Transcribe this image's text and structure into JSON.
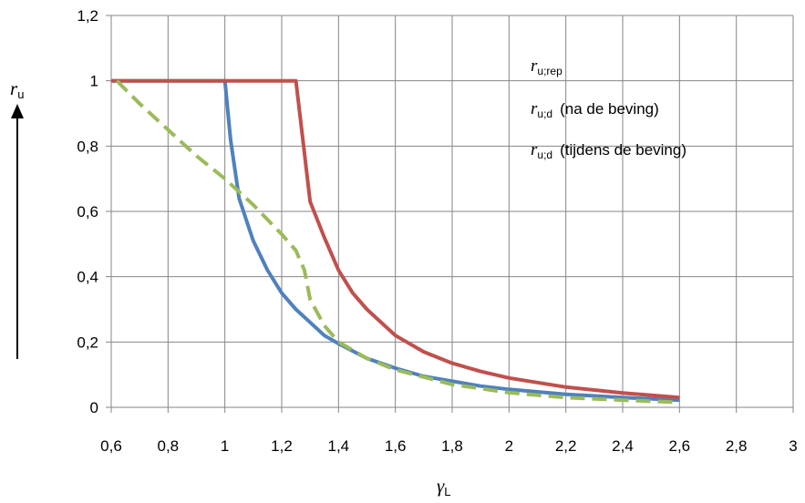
{
  "chart_data": {
    "type": "line",
    "xlabel": "γ",
    "xlabel_sub": "L",
    "ylabel": "r",
    "ylabel_sub": "u",
    "xlim": [
      0.6,
      3.0
    ],
    "ylim": [
      0,
      1.2
    ],
    "x_ticks": [
      "0,6",
      "0,8",
      "1",
      "1,2",
      "1,4",
      "1,6",
      "1,8",
      "2",
      "2,2",
      "2,4",
      "2,6",
      "2,8",
      "3"
    ],
    "y_ticks": [
      "0",
      "0,2",
      "0,4",
      "0,6",
      "0,8",
      "1",
      "1,2"
    ],
    "grid": true,
    "legend_position": "top-right",
    "series": [
      {
        "symbol": "r",
        "sub": "u;rep",
        "suffix": "",
        "color": "#4f81bd",
        "dash": "solid",
        "x": [
          0.6,
          1.0,
          1.02,
          1.05,
          1.1,
          1.15,
          1.2,
          1.25,
          1.3,
          1.35,
          1.4,
          1.5,
          1.6,
          1.7,
          1.8,
          1.9,
          2.0,
          2.2,
          2.4,
          2.6
        ],
        "y": [
          1.0,
          1.0,
          0.82,
          0.64,
          0.51,
          0.42,
          0.35,
          0.3,
          0.26,
          0.22,
          0.195,
          0.15,
          0.12,
          0.095,
          0.08,
          0.065,
          0.055,
          0.04,
          0.03,
          0.022
        ]
      },
      {
        "symbol": "r",
        "sub": "u;d",
        "suffix": "(na de beving)",
        "color": "#c0504d",
        "dash": "solid",
        "x": [
          0.6,
          1.0,
          1.25,
          1.3,
          1.35,
          1.4,
          1.45,
          1.5,
          1.6,
          1.7,
          1.8,
          1.9,
          2.0,
          2.2,
          2.4,
          2.6
        ],
        "y": [
          1.0,
          1.0,
          1.0,
          0.63,
          0.52,
          0.42,
          0.35,
          0.3,
          0.22,
          0.17,
          0.135,
          0.11,
          0.09,
          0.062,
          0.044,
          0.03
        ]
      },
      {
        "symbol": "r",
        "sub": "u;d",
        "suffix": "(tijdens de beving)",
        "color": "#9bbb59",
        "dash": "dashed",
        "x": [
          0.62,
          0.7,
          0.8,
          0.9,
          1.0,
          1.1,
          1.2,
          1.25,
          1.28,
          1.3,
          1.35,
          1.4,
          1.5,
          1.6,
          1.8,
          2.0,
          2.2,
          2.4,
          2.6
        ],
        "y": [
          1.0,
          0.93,
          0.85,
          0.77,
          0.7,
          0.62,
          0.53,
          0.48,
          0.42,
          0.33,
          0.25,
          0.2,
          0.15,
          0.115,
          0.07,
          0.045,
          0.03,
          0.022,
          0.015
        ]
      }
    ]
  }
}
